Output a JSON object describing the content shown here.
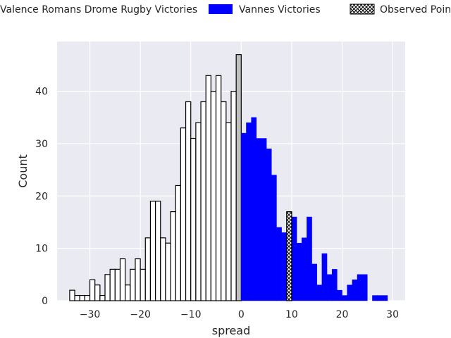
{
  "chart_data": {
    "type": "bar",
    "xlabel": "spread",
    "ylabel": "Count",
    "xlim": [
      -36.5,
      32.5
    ],
    "ylim": [
      0,
      49.5
    ],
    "xticks": [
      -30,
      -20,
      -10,
      0,
      10,
      20,
      30
    ],
    "yticks": [
      0,
      10,
      20,
      30,
      40
    ],
    "xtick_labels": [
      "−30",
      "−20",
      "−10",
      "0",
      "10",
      "20",
      "30"
    ],
    "ytick_labels": [
      "0",
      "10",
      "20",
      "30",
      "40"
    ],
    "grid": true,
    "legend_placement": "top",
    "bin_width": 1,
    "series": [
      {
        "name": "Valence Romans Drome Rugby Victories",
        "color": "#ffffff",
        "edgecolor": "#000000",
        "bins": [
          [
            -34,
            2
          ],
          [
            -33,
            1
          ],
          [
            -32,
            1
          ],
          [
            -31,
            1
          ],
          [
            -30,
            4
          ],
          [
            -29,
            3
          ],
          [
            -28,
            1
          ],
          [
            -27,
            5
          ],
          [
            -26,
            6
          ],
          [
            -25,
            6
          ],
          [
            -24,
            8
          ],
          [
            -23,
            3
          ],
          [
            -22,
            6
          ],
          [
            -21,
            8
          ],
          [
            -20,
            6
          ],
          [
            -19,
            12
          ],
          [
            -18,
            19
          ],
          [
            -17,
            19
          ],
          [
            -16,
            12
          ],
          [
            -15,
            11
          ],
          [
            -14,
            17
          ],
          [
            -13,
            22
          ],
          [
            -12,
            33
          ],
          [
            -11,
            38
          ],
          [
            -10,
            31
          ],
          [
            -9,
            34
          ],
          [
            -8,
            38
          ],
          [
            -7,
            43
          ],
          [
            -6,
            40
          ],
          [
            -5,
            43
          ],
          [
            -4,
            38
          ],
          [
            -3,
            34
          ],
          [
            -2,
            40
          ]
        ]
      },
      {
        "name": "",
        "color": "#bfbfbf",
        "edgecolor": "#000000",
        "bins": [
          [
            -1,
            47
          ]
        ]
      },
      {
        "name": "Vannes Victories",
        "color": "#0000ff",
        "edgecolor": "#0000ff",
        "bins": [
          [
            0,
            32
          ],
          [
            1,
            34
          ],
          [
            2,
            35
          ],
          [
            3,
            31
          ],
          [
            4,
            31
          ],
          [
            5,
            29
          ],
          [
            6,
            24
          ],
          [
            7,
            14
          ],
          [
            8,
            13
          ],
          [
            10,
            16
          ],
          [
            11,
            11
          ],
          [
            12,
            12
          ],
          [
            13,
            16
          ],
          [
            14,
            7
          ],
          [
            15,
            3
          ],
          [
            16,
            9
          ],
          [
            17,
            5
          ],
          [
            18,
            6
          ],
          [
            19,
            2
          ],
          [
            20,
            1
          ],
          [
            21,
            3
          ],
          [
            22,
            4
          ],
          [
            23,
            5
          ],
          [
            24,
            5
          ],
          [
            26,
            1
          ],
          [
            27,
            1
          ],
          [
            28,
            1
          ]
        ]
      },
      {
        "name": "Observed Point Spread",
        "color": "#ffffff",
        "edgecolor": "#000000",
        "hatch": true,
        "bins": [
          [
            9,
            17
          ]
        ]
      }
    ]
  }
}
